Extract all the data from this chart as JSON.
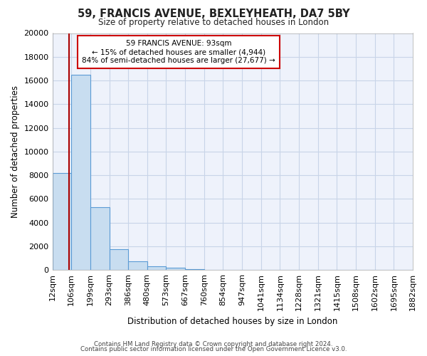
{
  "title": "59, FRANCIS AVENUE, BEXLEYHEATH, DA7 5BY",
  "subtitle": "Size of property relative to detached houses in London",
  "xlabel": "Distribution of detached houses by size in London",
  "ylabel": "Number of detached properties",
  "bar_values": [
    8200,
    16500,
    5300,
    1750,
    750,
    300,
    200,
    100,
    0,
    0,
    0,
    0,
    0,
    0,
    0,
    0,
    0,
    0,
    0
  ],
  "bin_labels": [
    "12sqm",
    "106sqm",
    "199sqm",
    "293sqm",
    "386sqm",
    "480sqm",
    "573sqm",
    "667sqm",
    "760sqm",
    "854sqm",
    "947sqm",
    "1041sqm",
    "1134sqm",
    "1228sqm",
    "1321sqm",
    "1415sqm",
    "1508sqm",
    "1602sqm",
    "1695sqm",
    "1882sqm"
  ],
  "bar_color": "#c8ddf0",
  "bar_edge_color": "#5b9bd5",
  "marker_color": "#aa0000",
  "ylim": [
    0,
    20000
  ],
  "yticks": [
    0,
    2000,
    4000,
    6000,
    8000,
    10000,
    12000,
    14000,
    16000,
    18000,
    20000
  ],
  "annotation_title": "59 FRANCIS AVENUE: 93sqm",
  "annotation_line1": "← 15% of detached houses are smaller (4,944)",
  "annotation_line2": "84% of semi-detached houses are larger (27,677) →",
  "annotation_box_color": "#ffffff",
  "annotation_box_edge": "#cc0000",
  "footer_line1": "Contains HM Land Registry data © Crown copyright and database right 2024.",
  "footer_line2": "Contains public sector information licensed under the Open Government Licence v3.0.",
  "bg_color": "#ffffff",
  "plot_bg_color": "#eef2fb",
  "grid_color": "#c8d4e8"
}
